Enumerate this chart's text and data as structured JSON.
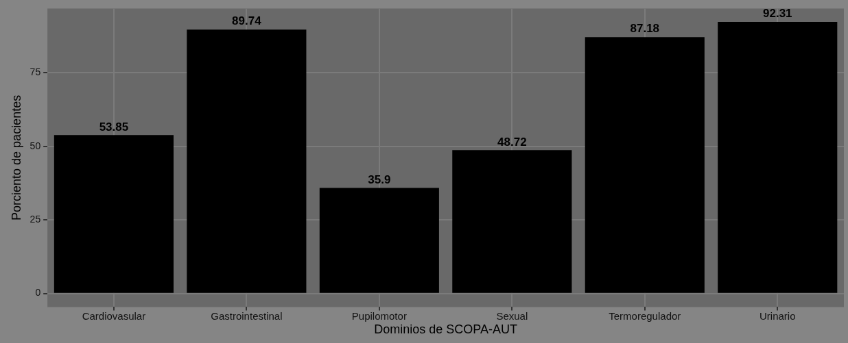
{
  "chart_data": {
    "type": "bar",
    "xlabel": "Dominios de SCOPA-AUT",
    "ylabel": "Porciento de pacientes",
    "categories": [
      "Cardiovasular",
      "Gastrointestinal",
      "Pupilomotor",
      "Sexual",
      "Termoregulador",
      "Urinario"
    ],
    "values": [
      53.85,
      89.74,
      35.9,
      48.72,
      87.18,
      92.31
    ],
    "color": "#000000",
    "ylim": [
      -4.6,
      96.9
    ],
    "yticks": [
      0,
      25,
      50,
      75
    ],
    "grid": true,
    "data_labels": true,
    "legend": false
  }
}
